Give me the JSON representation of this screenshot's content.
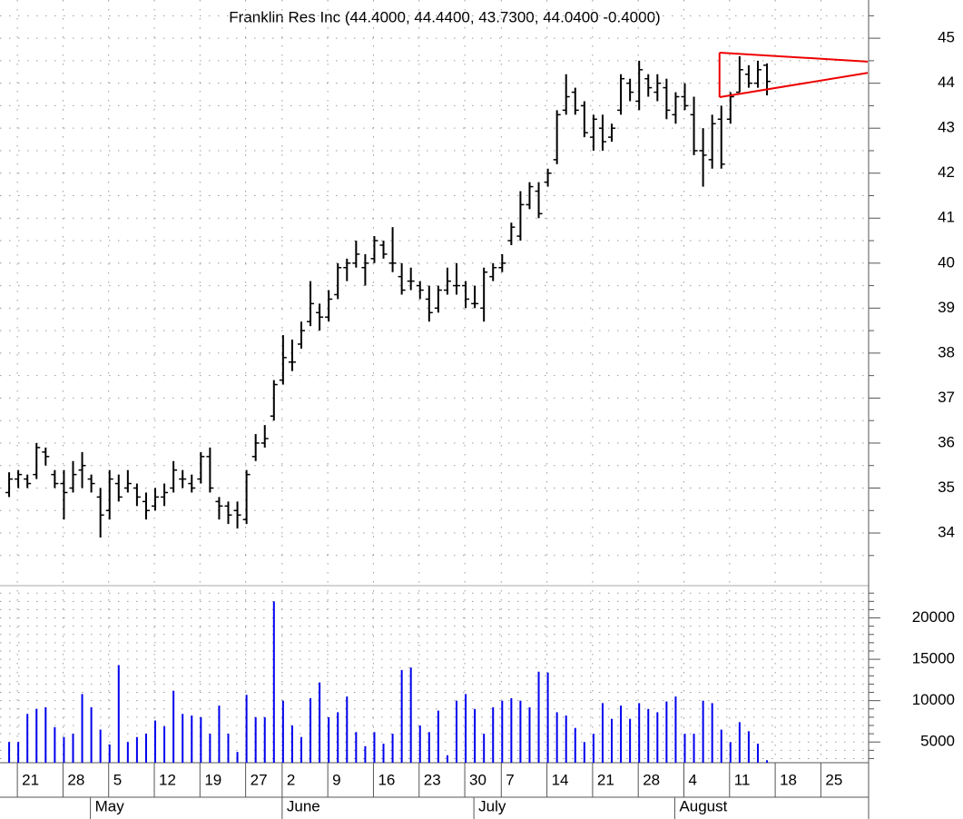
{
  "chart_data": [
    {
      "type": "ohlc",
      "subtitle": "Franklin Res Inc (44.4000, 44.4400, 43.7300, 44.0400 -0.4000)",
      "categories": [
        null,
        "21",
        null,
        null,
        null,
        null,
        "28",
        null,
        null,
        null,
        null,
        "5",
        null,
        null,
        null,
        null,
        "12",
        null,
        null,
        null,
        null,
        "19",
        null,
        null,
        null,
        null,
        "27",
        null,
        null,
        null,
        "2",
        null,
        null,
        null,
        null,
        "9",
        null,
        null,
        null,
        null,
        "16",
        null,
        null,
        null,
        null,
        "23",
        null,
        null,
        null,
        null,
        "30",
        null,
        null,
        null,
        "7",
        null,
        null,
        null,
        null,
        "14",
        null,
        null,
        null,
        null,
        "21",
        null,
        null,
        null,
        null,
        "28",
        null,
        null,
        null,
        null,
        "4",
        null,
        null,
        null,
        null,
        "11",
        null,
        null,
        null,
        null,
        "18",
        null,
        null,
        null,
        null,
        "25",
        null,
        null,
        null,
        null
      ],
      "months": [
        null,
        null,
        null,
        null,
        null,
        null,
        null,
        null,
        null,
        "May",
        null,
        null,
        null,
        null,
        null,
        null,
        null,
        null,
        null,
        null,
        null,
        null,
        null,
        null,
        null,
        null,
        null,
        null,
        null,
        null,
        "June",
        null,
        null,
        null,
        null,
        null,
        null,
        null,
        null,
        null,
        null,
        null,
        null,
        null,
        null,
        null,
        null,
        null,
        null,
        null,
        null,
        "July",
        null,
        null,
        null,
        null,
        null,
        null,
        null,
        null,
        null,
        null,
        null,
        null,
        null,
        null,
        null,
        null,
        null,
        null,
        null,
        null,
        null,
        "August",
        null,
        null,
        null,
        null,
        null,
        null,
        null,
        null,
        null,
        null,
        null,
        null,
        null,
        null,
        null,
        null,
        null,
        null,
        null,
        null
      ],
      "open": [
        34.9,
        35.2,
        35.2,
        35.3,
        35.8,
        35.3,
        35.1,
        35.0,
        35.4,
        35.2,
        34.8,
        34.5,
        35.1,
        35.0,
        35.0,
        34.7,
        34.6,
        34.8,
        35.0,
        35.2,
        35.1,
        35.2,
        35.7,
        34.7,
        34.6,
        34.5,
        34.3,
        35.7,
        36.0,
        36.6,
        37.4,
        37.8,
        38.2,
        38.7,
        38.9,
        38.8,
        39.3,
        39.9,
        40.0,
        39.9,
        40.1,
        40.4,
        40.0,
        39.7,
        39.6,
        39.5,
        39.2,
        39.0,
        39.4,
        39.5,
        39.5,
        39.1,
        39.0,
        39.7,
        39.9,
        40.5,
        40.6,
        41.3,
        41.6,
        41.8,
        42.3,
        43.4,
        43.8,
        43.5,
        42.8,
        43.0,
        42.8,
        43.4,
        44.0,
        43.6,
        44.1,
        43.8,
        43.9,
        43.3,
        43.7,
        43.3,
        42.5,
        42.3,
        43.2,
        43.2,
        43.8,
        44.2,
        44.0,
        44.4,
        null,
        null,
        null,
        null,
        null,
        null,
        null,
        null,
        null,
        null
      ],
      "high": [
        35.35,
        35.4,
        35.3,
        36.0,
        35.9,
        35.4,
        35.4,
        35.6,
        35.8,
        35.3,
        35.0,
        35.4,
        35.3,
        35.4,
        35.1,
        34.9,
        35.0,
        35.1,
        35.6,
        35.4,
        35.3,
        35.8,
        35.9,
        34.8,
        34.7,
        34.7,
        35.4,
        36.2,
        36.4,
        37.4,
        38.4,
        38.3,
        38.7,
        39.6,
        39.1,
        39.4,
        40.0,
        40.1,
        40.5,
        40.2,
        40.6,
        40.5,
        40.8,
        40.0,
        39.9,
        39.6,
        39.5,
        39.5,
        39.9,
        40.0,
        39.6,
        39.5,
        39.9,
        40.0,
        40.2,
        40.9,
        41.6,
        41.8,
        41.8,
        42.1,
        43.4,
        44.2,
        43.9,
        43.6,
        43.3,
        43.3,
        43.1,
        44.2,
        44.1,
        44.5,
        44.2,
        44.2,
        44.1,
        43.8,
        44.0,
        43.7,
        43.0,
        43.3,
        43.5,
        43.8,
        44.6,
        44.4,
        44.5,
        44.44,
        null,
        null,
        null,
        null,
        null,
        null,
        null,
        null,
        null,
        null
      ],
      "low": [
        34.8,
        35.0,
        35.0,
        35.2,
        35.5,
        35.0,
        34.3,
        34.9,
        35.0,
        34.9,
        33.9,
        34.3,
        34.7,
        34.9,
        34.6,
        34.3,
        34.5,
        34.6,
        34.9,
        35.0,
        34.9,
        35.1,
        34.9,
        34.3,
        34.2,
        34.1,
        34.2,
        35.6,
        35.9,
        36.5,
        37.3,
        37.6,
        38.1,
        38.6,
        38.5,
        38.7,
        39.2,
        39.6,
        39.9,
        39.5,
        40.0,
        40.1,
        39.8,
        39.3,
        39.4,
        39.2,
        38.7,
        38.9,
        39.3,
        39.3,
        39.0,
        39.0,
        38.7,
        39.6,
        39.8,
        40.4,
        40.5,
        41.2,
        41.0,
        41.7,
        42.2,
        43.3,
        43.3,
        42.8,
        42.5,
        42.5,
        42.7,
        43.3,
        43.6,
        43.4,
        43.7,
        43.6,
        43.2,
        43.1,
        43.4,
        42.4,
        41.7,
        42.1,
        42.1,
        43.1,
        43.8,
        43.9,
        43.9,
        43.73,
        null,
        null,
        null,
        null,
        null,
        null,
        null,
        null,
        null,
        null
      ],
      "close": [
        35.2,
        35.3,
        35.1,
        35.9,
        35.7,
        35.1,
        34.9,
        35.3,
        35.5,
        35.1,
        34.4,
        35.2,
        34.8,
        35.1,
        34.8,
        34.5,
        34.8,
        34.9,
        35.4,
        35.2,
        35.0,
        35.7,
        35.0,
        34.6,
        34.4,
        34.4,
        35.3,
        36.0,
        36.1,
        37.3,
        37.9,
        37.8,
        38.5,
        39.1,
        38.8,
        39.2,
        39.9,
        40.0,
        40.2,
        40.0,
        40.5,
        40.2,
        40.0,
        39.4,
        39.6,
        39.4,
        38.9,
        39.4,
        39.6,
        39.5,
        39.2,
        39.1,
        39.8,
        39.9,
        40.0,
        40.8,
        41.3,
        41.7,
        41.1,
        42.0,
        43.3,
        43.7,
        43.4,
        42.9,
        43.2,
        42.7,
        43.0,
        44.1,
        43.8,
        44.3,
        43.9,
        44.0,
        43.4,
        43.7,
        43.5,
        42.5,
        42.4,
        43.1,
        42.2,
        43.7,
        44.3,
        44.0,
        44.3,
        44.04,
        null,
        null,
        null,
        null,
        null,
        null,
        null,
        null,
        null,
        null
      ],
      "color": "#000000",
      "ylim": [
        32.83,
        45.85
      ],
      "yticks": [
        34,
        35,
        36,
        37,
        38,
        39,
        40,
        41,
        42,
        43,
        44,
        45
      ],
      "y_minor_ticks": [
        33.5,
        34.5,
        35.5,
        36.5,
        37.5,
        38.5,
        39.5,
        40.5,
        41.5,
        42.5,
        43.5,
        44.5,
        45.5
      ],
      "grid": true,
      "trendlines": [
        {
          "color": "#ee0000",
          "values": [
            44.68,
            44.48
          ]
        },
        {
          "color": "#ee0000",
          "values": [
            43.69,
            44.23
          ]
        }
      ]
    },
    {
      "type": "bar",
      "values": [
        5000,
        5000,
        8400,
        9000,
        9200,
        6800,
        5600,
        6000,
        10800,
        9200,
        6500,
        4700,
        14300,
        5000,
        5600,
        6000,
        7600,
        6900,
        11200,
        8400,
        8200,
        8000,
        6000,
        9400,
        6000,
        3800,
        10700,
        8000,
        8000,
        22000,
        10000,
        7000,
        5600,
        10300,
        12200,
        8000,
        8600,
        10500,
        6200,
        4500,
        6200,
        4800,
        6000,
        13700,
        14000,
        7000,
        6200,
        8800,
        3400,
        10000,
        10800,
        9000,
        6000,
        9200,
        10000,
        10300,
        10000,
        9200,
        13500,
        13400,
        8600,
        8200,
        6700,
        5000,
        6000,
        9700,
        7800,
        9400,
        7800,
        9700,
        9000,
        8600,
        9900,
        10500,
        6000,
        6000,
        10000,
        9700,
        6500,
        5000,
        7400,
        6300,
        4800,
        2800,
        null,
        null,
        null,
        null,
        null,
        null,
        null,
        null,
        null,
        null
      ],
      "color": "#0000ee",
      "ylim": [
        2500,
        23900
      ],
      "yticks": [
        5000,
        10000,
        15000,
        20000
      ],
      "y_minor_ticks": [
        3000,
        4000,
        6000,
        7000,
        8000,
        9000,
        11000,
        12000,
        13000,
        14000,
        16000,
        17000,
        18000,
        19000,
        21000,
        22000,
        23000
      ],
      "grid": true
    }
  ]
}
